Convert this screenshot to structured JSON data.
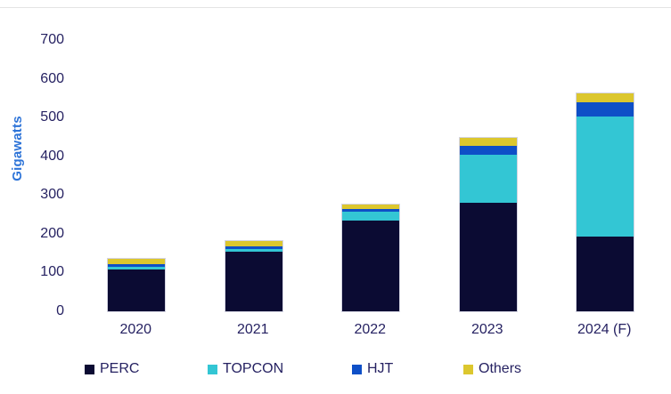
{
  "chart_data": {
    "type": "bar",
    "stacked": true,
    "title": "",
    "ylabel": "Gigawatts",
    "xlabel": "",
    "categories": [
      "2020",
      "2021",
      "2022",
      "2023",
      "2024 (F)"
    ],
    "series": [
      {
        "name": "PERC",
        "color": "#0b0b33",
        "values": [
          108,
          153,
          235,
          280,
          192
        ]
      },
      {
        "name": "TOPCON",
        "color": "#33c6d4",
        "values": [
          7,
          7,
          23,
          125,
          312
        ]
      },
      {
        "name": "HJT",
        "color": "#0e4fc7",
        "values": [
          6,
          7,
          5,
          21,
          36
        ]
      },
      {
        "name": "Others",
        "color": "#dcc72e",
        "values": [
          15,
          15,
          12,
          21,
          23
        ]
      }
    ],
    "totals": [
      136,
      182,
      275,
      447,
      563
    ],
    "ylim": [
      0,
      700
    ],
    "yticks": [
      0,
      100,
      200,
      300,
      400,
      500,
      600,
      700
    ],
    "grid": false,
    "legend_position": "bottom",
    "legend_labels": [
      "PERC",
      "TOPCON",
      "HJT",
      "Others"
    ],
    "axis_text_color": "#262262",
    "ylabel_color": "#2e74d8",
    "background_color": "#ffffff"
  }
}
